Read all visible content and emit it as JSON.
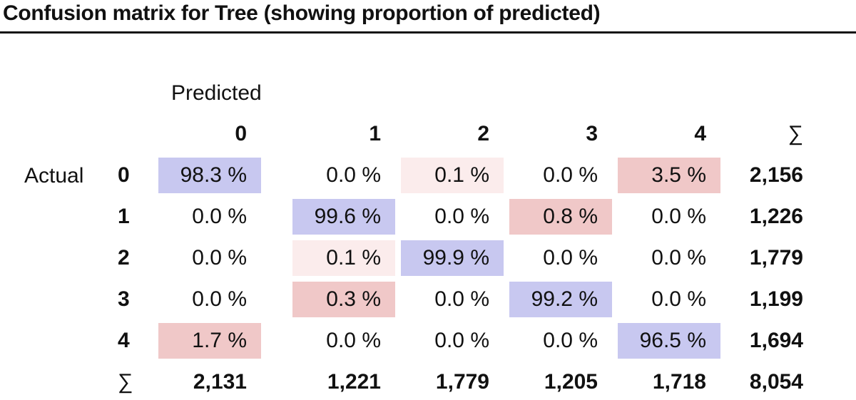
{
  "title": "Confusion matrix for Tree (showing proportion of predicted)",
  "predicted_label": "Predicted",
  "actual_label": "Actual",
  "sum_symbol": "∑",
  "classes": [
    "0",
    "1",
    "2",
    "3",
    "4"
  ],
  "matrix": [
    [
      "98.3 %",
      "0.0 %",
      "0.1 %",
      "0.0 %",
      "3.5 %"
    ],
    [
      "0.0 %",
      "99.6 %",
      "0.0 %",
      "0.8 %",
      "0.0 %"
    ],
    [
      "0.0 %",
      "0.1 %",
      "99.9 %",
      "0.0 %",
      "0.0 %"
    ],
    [
      "0.0 %",
      "0.3 %",
      "0.0 %",
      "99.2 %",
      "0.0 %"
    ],
    [
      "1.7 %",
      "0.0 %",
      "0.0 %",
      "0.0 %",
      "96.5 %"
    ]
  ],
  "row_totals": [
    "2,156",
    "1,226",
    "1,779",
    "1,199",
    "1,694"
  ],
  "col_totals": [
    "2,131",
    "1,221",
    "1,779",
    "1,205",
    "1,718"
  ],
  "grand_total": "8,054",
  "colors": {
    "correct": "#c8c8f0",
    "error_strong": "#f0c8c8",
    "error_light": "#fbecec"
  }
}
